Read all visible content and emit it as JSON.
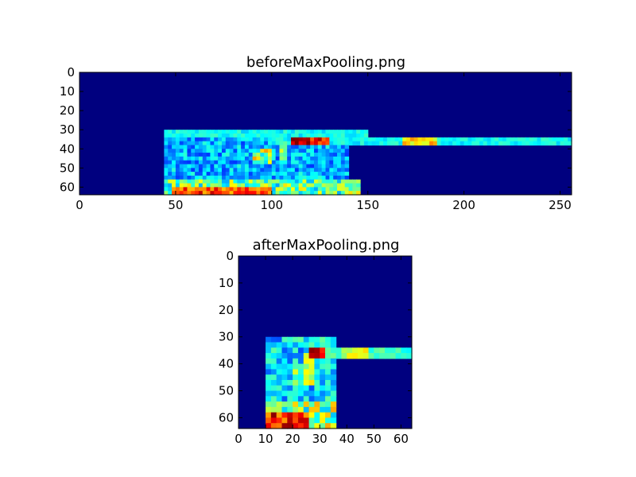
{
  "chart_data": [
    {
      "type": "heatmap",
      "title": "beforeMaxPooling.png",
      "xlabel": "",
      "ylabel": "",
      "xlim": [
        0,
        256
      ],
      "ylim": [
        64,
        0
      ],
      "x_ticks": [
        0,
        50,
        100,
        150,
        200,
        250
      ],
      "y_ticks": [
        0,
        10,
        20,
        30,
        40,
        50,
        60
      ],
      "colormap": "jet",
      "background_color": "#00007f",
      "features": [
        {
          "x": [
            45,
            145
          ],
          "y": [
            56,
            64
          ],
          "intensity": 0.55,
          "kind": "block"
        },
        {
          "x": [
            48,
            100
          ],
          "y": [
            60,
            63
          ],
          "intensity": 0.85,
          "kind": "band"
        },
        {
          "x": [
            45,
            140
          ],
          "y": [
            30,
            56
          ],
          "intensity": 0.35,
          "kind": "block"
        },
        {
          "x": [
            45,
            150
          ],
          "y": [
            30,
            33
          ],
          "intensity": 0.4,
          "kind": "band"
        },
        {
          "x": [
            110,
            130
          ],
          "y": [
            35,
            37
          ],
          "intensity": 0.95,
          "kind": "band"
        },
        {
          "x": [
            100,
            256
          ],
          "y": [
            35,
            37
          ],
          "intensity": 0.4,
          "kind": "band"
        },
        {
          "x": [
            168,
            185
          ],
          "y": [
            35,
            37
          ],
          "intensity": 0.7,
          "kind": "band"
        },
        {
          "x": [
            104,
            108
          ],
          "y": [
            36,
            46
          ],
          "intensity": 0.55,
          "kind": "line"
        },
        {
          "x": [
            90,
            100
          ],
          "y": [
            40,
            48
          ],
          "intensity": 0.6,
          "kind": "block"
        },
        {
          "x": [
            120,
            145
          ],
          "y": [
            57,
            63
          ],
          "intensity": 0.5,
          "kind": "block"
        }
      ]
    },
    {
      "type": "heatmap",
      "title": "afterMaxPooling.png",
      "xlabel": "",
      "ylabel": "",
      "xlim": [
        0,
        64
      ],
      "ylim": [
        64,
        0
      ],
      "x_ticks": [
        0,
        10,
        20,
        30,
        40,
        50,
        60
      ],
      "y_ticks": [
        0,
        10,
        20,
        30,
        40,
        50,
        60
      ],
      "colormap": "jet",
      "background_color": "#00007f",
      "features": [
        {
          "x": [
            11,
            36
          ],
          "y": [
            55,
            64
          ],
          "intensity": 0.6,
          "kind": "block"
        },
        {
          "x": [
            11,
            26
          ],
          "y": [
            58,
            64
          ],
          "intensity": 0.9,
          "kind": "band"
        },
        {
          "x": [
            11,
            36
          ],
          "y": [
            30,
            55
          ],
          "intensity": 0.4,
          "kind": "block"
        },
        {
          "x": [
            26,
            32
          ],
          "y": [
            35,
            37
          ],
          "intensity": 0.95,
          "kind": "band"
        },
        {
          "x": [
            26,
            64
          ],
          "y": [
            35,
            37
          ],
          "intensity": 0.45,
          "kind": "band"
        },
        {
          "x": [
            38,
            48
          ],
          "y": [
            35,
            37
          ],
          "intensity": 0.6,
          "kind": "band"
        },
        {
          "x": [
            25,
            27
          ],
          "y": [
            36,
            48
          ],
          "intensity": 0.6,
          "kind": "line"
        },
        {
          "x": [
            20,
            26
          ],
          "y": [
            40,
            48
          ],
          "intensity": 0.55,
          "kind": "block"
        }
      ]
    }
  ]
}
